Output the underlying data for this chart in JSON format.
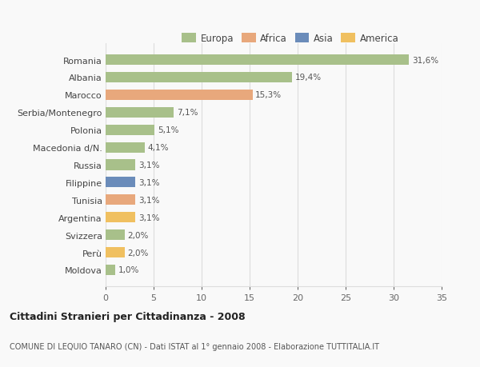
{
  "countries": [
    "Romania",
    "Albania",
    "Marocco",
    "Serbia/Montenegro",
    "Polonia",
    "Macedonia d/N.",
    "Russia",
    "Filippine",
    "Tunisia",
    "Argentina",
    "Svizzera",
    "Perù",
    "Moldova"
  ],
  "values": [
    31.6,
    19.4,
    15.3,
    7.1,
    5.1,
    4.1,
    3.1,
    3.1,
    3.1,
    3.1,
    2.0,
    2.0,
    1.0
  ],
  "labels": [
    "31,6%",
    "19,4%",
    "15,3%",
    "7,1%",
    "5,1%",
    "4,1%",
    "3,1%",
    "3,1%",
    "3,1%",
    "3,1%",
    "2,0%",
    "2,0%",
    "1,0%"
  ],
  "colors": [
    "#a8c08a",
    "#a8c08a",
    "#e8a87c",
    "#a8c08a",
    "#a8c08a",
    "#a8c08a",
    "#a8c08a",
    "#6b8cba",
    "#e8a87c",
    "#f0c060",
    "#a8c08a",
    "#f0c060",
    "#a8c08a"
  ],
  "legend_labels": [
    "Europa",
    "Africa",
    "Asia",
    "America"
  ],
  "legend_colors": [
    "#a8c08a",
    "#e8a87c",
    "#6b8cba",
    "#f0c060"
  ],
  "title": "Cittadini Stranieri per Cittadinanza - 2008",
  "subtitle": "COMUNE DI LEQUIO TANARO (CN) - Dati ISTAT al 1° gennaio 2008 - Elaborazione TUTTITALIA.IT",
  "xlim": [
    0,
    35
  ],
  "xticks": [
    0,
    5,
    10,
    15,
    20,
    25,
    30,
    35
  ],
  "background_color": "#f9f9f9",
  "grid_color": "#dddddd"
}
